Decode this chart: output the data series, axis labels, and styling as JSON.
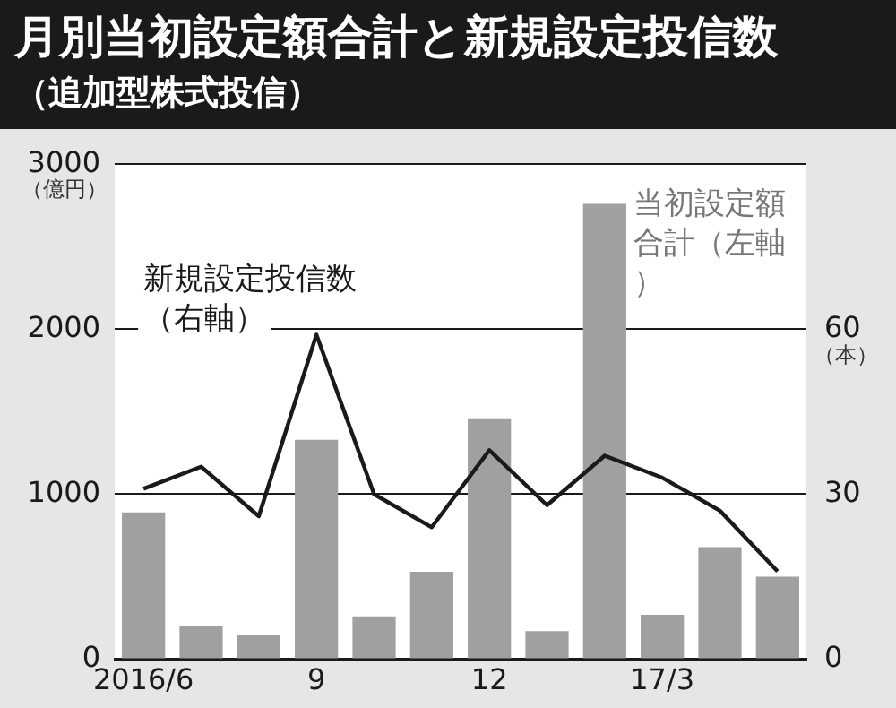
{
  "chart_data": {
    "type": "bar",
    "title": "月別当初設定額合計と新規設定投信数",
    "subtitle": "（追加型株式投信）",
    "ylabel": "（億円）",
    "y2label": "（本）",
    "categories": [
      "2016/6",
      null,
      null,
      "9",
      null,
      null,
      "12",
      null,
      null,
      "17/3",
      null,
      null
    ],
    "series": [
      {
        "name": "当初設定額合計（左軸）",
        "color": "#a0a0a2",
        "values": [
          890,
          200,
          150,
          1330,
          260,
          530,
          1460,
          170,
          2760,
          270,
          680,
          500
        ]
      },
      {
        "name": "新規設定投信数（右軸）",
        "type": "line",
        "axis": "y2",
        "color": "#1a1a1a",
        "values": [
          31,
          35,
          26,
          59,
          30,
          24,
          38,
          28,
          37,
          33,
          27,
          16
        ]
      }
    ],
    "ylim": [
      0,
      3000
    ],
    "yticks": [
      0,
      1000,
      2000,
      3000
    ],
    "y2lim": [
      0,
      90
    ],
    "y2ticks": [
      0,
      30,
      60
    ],
    "grid": "y",
    "legend": false,
    "marker": "none",
    "line_style": "solid"
  }
}
